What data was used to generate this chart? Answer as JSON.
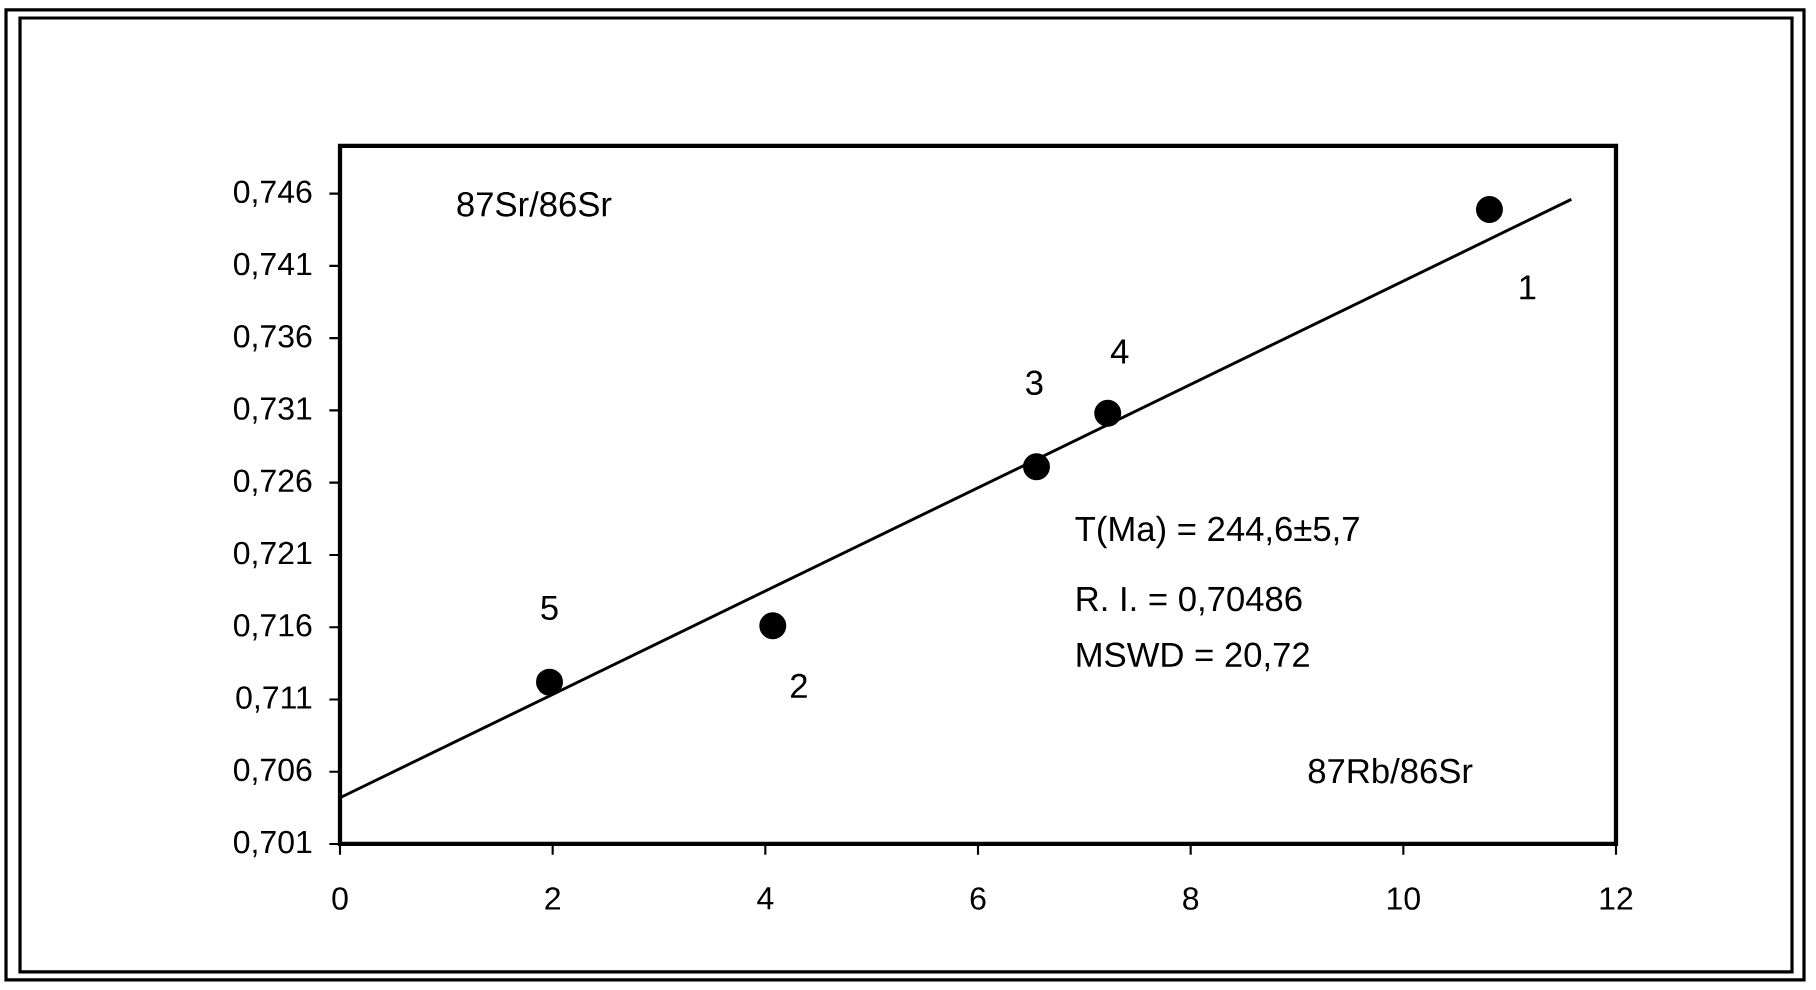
{
  "chart_data": {
    "type": "scatter",
    "xlabel": "87Rb/86Sr",
    "ylabel": "87Sr/86Sr",
    "xlim": [
      0,
      12
    ],
    "xticks": [
      0,
      2,
      4,
      6,
      8,
      10,
      12
    ],
    "ylim": [
      0.701,
      0.7493
    ],
    "yticks": [
      {
        "value": 0.701,
        "label": "0,701"
      },
      {
        "value": 0.706,
        "label": "0,706"
      },
      {
        "value": 0.711,
        "label": "0,711"
      },
      {
        "value": 0.716,
        "label": "0,716"
      },
      {
        "value": 0.721,
        "label": "0,721"
      },
      {
        "value": 0.726,
        "label": "0,726"
      },
      {
        "value": 0.731,
        "label": "0,731"
      },
      {
        "value": 0.736,
        "label": "0,736"
      },
      {
        "value": 0.741,
        "label": "0,741"
      },
      {
        "value": 0.746,
        "label": "0,746"
      }
    ],
    "grid": false,
    "series": [
      {
        "marker": "circle",
        "color": "#000000",
        "x": [
          10.81,
          4.07,
          6.55,
          7.22,
          1.97
        ],
        "values": [
          0.7449,
          0.7161,
          0.7271,
          0.7308,
          0.7122
        ]
      },
      {
        "type": "line",
        "marker": "none",
        "line_style": "solid",
        "color": "#000000",
        "x": [
          0,
          11.58
        ],
        "values": [
          0.7042,
          0.7456
        ]
      }
    ],
    "annotations": [
      {
        "text": "1",
        "x": 10.81,
        "y": 0.7449
      },
      {
        "text": "2",
        "x": 4.07,
        "y": 0.7161
      },
      {
        "text": "3",
        "x": 6.55,
        "y": 0.7271
      },
      {
        "text": "4",
        "x": 7.22,
        "y": 0.7308
      },
      {
        "text": "5",
        "x": 1.97,
        "y": 0.7122
      },
      "T(Ma)     = 244,6±5,7",
      "R. I.        = 0,70486",
      "MSWD  = 20,72"
    ]
  }
}
